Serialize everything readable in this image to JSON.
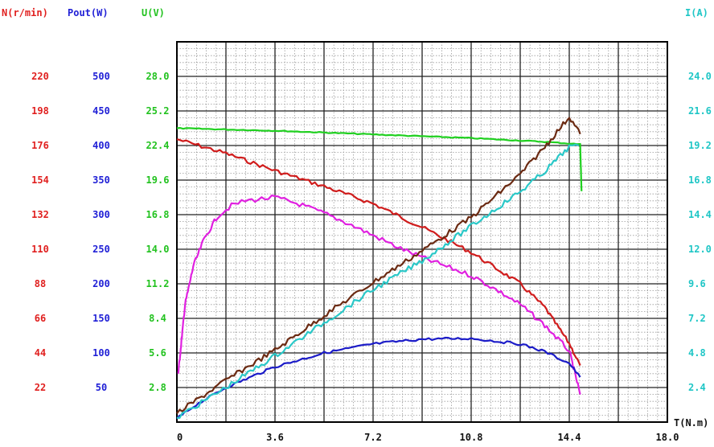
{
  "chart_data": {
    "type": "line",
    "x_axis": {
      "label": "T(N.m)",
      "range": [
        0,
        18.0
      ],
      "ticks": [
        "0",
        "3.6",
        "7.2",
        "10.8",
        "14.4",
        "18.0"
      ]
    },
    "y_axes": [
      {
        "id": "N",
        "label": "N(r/min)",
        "color": "#e0201f",
        "side": "left",
        "range": [
          0,
          242
        ],
        "ticks": [
          "22",
          "44",
          "66",
          "88",
          "110",
          "132",
          "154",
          "176",
          "198",
          "220"
        ]
      },
      {
        "id": "Pout",
        "label": "Pout(W)",
        "color": "#1f1fd6",
        "side": "left",
        "range": [
          0,
          550
        ],
        "ticks": [
          "50",
          "100",
          "150",
          "200",
          "250",
          "300",
          "350",
          "400",
          "450",
          "500"
        ]
      },
      {
        "id": "U",
        "label": "U(V)",
        "color": "#22c21f",
        "side": "left",
        "range": [
          0,
          30.8
        ],
        "ticks": [
          "2.8",
          "5.6",
          "8.4",
          "11.2",
          "14.0",
          "16.8",
          "19.6",
          "22.4",
          "25.2",
          "28.0"
        ]
      },
      {
        "id": "I",
        "label": "I(A)",
        "color": "#1fc6c6",
        "side": "right",
        "range": [
          0,
          26.4
        ],
        "ticks": [
          "2.4",
          "4.8",
          "7.2",
          "9.6",
          "12.0",
          "14.4",
          "16.8",
          "19.2",
          "21.6",
          "24.0"
        ]
      }
    ],
    "grid": true,
    "series": [
      {
        "id": "speed",
        "axis": "N",
        "color": "#d01c1c",
        "points": [
          [
            0,
            180
          ],
          [
            1.8,
            171
          ],
          [
            3.6,
            160
          ],
          [
            5.4,
            150
          ],
          [
            7.2,
            139
          ],
          [
            9,
            124
          ],
          [
            10.8,
            108
          ],
          [
            12.6,
            88
          ],
          [
            13.5,
            73
          ],
          [
            14.4,
            50
          ],
          [
            14.8,
            36
          ]
        ]
      },
      {
        "id": "voltage",
        "axis": "U",
        "color": "#20d020",
        "points": [
          [
            0,
            23.8
          ],
          [
            3.6,
            23.6
          ],
          [
            7.2,
            23.3
          ],
          [
            10.8,
            23.0
          ],
          [
            13.5,
            22.7
          ],
          [
            14.8,
            22.5
          ],
          [
            14.85,
            18.7
          ]
        ]
      },
      {
        "id": "efficiency",
        "axis": "Pout",
        "color": "#e020e0",
        "points": [
          [
            0.05,
            70
          ],
          [
            0.3,
            170
          ],
          [
            0.6,
            225
          ],
          [
            1,
            265
          ],
          [
            1.5,
            298
          ],
          [
            2,
            313
          ],
          [
            2.5,
            320
          ],
          [
            3.6,
            325
          ],
          [
            4.5,
            315
          ],
          [
            5.4,
            302
          ],
          [
            6.3,
            287
          ],
          [
            7.2,
            270
          ],
          [
            8.1,
            253
          ],
          [
            9,
            238
          ],
          [
            9.9,
            225
          ],
          [
            10.8,
            212
          ],
          [
            11.7,
            192
          ],
          [
            12.6,
            170
          ],
          [
            13.5,
            140
          ],
          [
            14.4,
            103
          ],
          [
            14.8,
            40
          ]
        ]
      },
      {
        "id": "output_power",
        "axis": "Pout",
        "color": "#1c1cc8",
        "points": [
          [
            0,
            5
          ],
          [
            0.7,
            25
          ],
          [
            1.8,
            50
          ],
          [
            3.6,
            80
          ],
          [
            5.4,
            100
          ],
          [
            7.2,
            113
          ],
          [
            9,
            120
          ],
          [
            10.8,
            121
          ],
          [
            12.6,
            113
          ],
          [
            13.5,
            102
          ],
          [
            14.4,
            85
          ],
          [
            14.8,
            65
          ]
        ]
      },
      {
        "id": "current_a",
        "axis": "I",
        "color": "#6b2a12",
        "points": [
          [
            0,
            0.6
          ],
          [
            1.8,
            2.9
          ],
          [
            3.6,
            5.0
          ],
          [
            5.4,
            7.4
          ],
          [
            7.2,
            9.7
          ],
          [
            9,
            11.9
          ],
          [
            10.8,
            14.2
          ],
          [
            12.6,
            17.2
          ],
          [
            13.5,
            19.1
          ],
          [
            14.4,
            21.2
          ],
          [
            14.8,
            20.0
          ]
        ]
      },
      {
        "id": "current_b",
        "axis": "I",
        "color": "#2ac8c8",
        "points": [
          [
            0,
            0.3
          ],
          [
            1.8,
            2.4
          ],
          [
            3.6,
            4.6
          ],
          [
            5.4,
            6.9
          ],
          [
            7.2,
            9.2
          ],
          [
            9,
            11.2
          ],
          [
            10.8,
            13.6
          ],
          [
            12.6,
            16.0
          ],
          [
            13.5,
            17.4
          ],
          [
            14.4,
            19.1
          ],
          [
            14.75,
            19.2
          ]
        ]
      }
    ]
  }
}
